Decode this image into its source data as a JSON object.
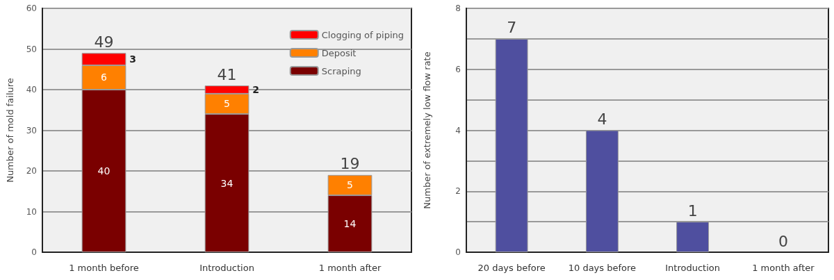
{
  "chart_data": [
    {
      "type": "bar",
      "ylabel": "Number of mold failure",
      "categories": [
        "1 month before",
        "Introduction",
        "1 month after"
      ],
      "stacked": true,
      "legend": "top right",
      "grid": "y",
      "ylim": [
        0,
        60
      ],
      "yticks": [
        0,
        10,
        20,
        30,
        40,
        50,
        60
      ],
      "totals": [
        "49",
        "41",
        "19"
      ],
      "series": [
        {
          "name": "Scraping",
          "color": "#7a0000",
          "values": [
            40,
            34,
            14
          ],
          "value_labels": [
            "40",
            "34",
            "14"
          ]
        },
        {
          "name": "Deposit",
          "color": "#ff8000",
          "values": [
            6,
            5,
            5
          ],
          "value_labels": [
            "6",
            "5",
            "5"
          ]
        },
        {
          "name": "Clogging of piping",
          "color": "#ff0000",
          "values": [
            3,
            2,
            0
          ],
          "value_labels": [
            "3",
            "2",
            null
          ]
        }
      ]
    },
    {
      "type": "bar",
      "ylabel": "Number of extremely low flow rate",
      "categories": [
        "20 days before",
        "10 days before",
        "Introduction",
        "1 month after"
      ],
      "grid": "y",
      "ylim": [
        0,
        8
      ],
      "yticks": [
        0,
        {
          "value": 1,
          "label": null
        },
        2,
        {
          "value": 3,
          "label": null
        },
        4,
        {
          "value": 5,
          "label": null
        },
        6,
        {
          "value": 7,
          "label": null
        },
        8
      ],
      "data_labels": true,
      "series": [
        {
          "color": "#4f4f9f",
          "values": [
            7,
            4,
            1,
            0
          ]
        }
      ]
    }
  ]
}
